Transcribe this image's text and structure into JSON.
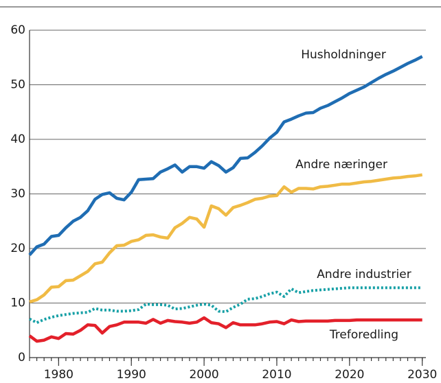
{
  "chart_data": {
    "type": "line",
    "x": [
      1976,
      1977,
      1978,
      1979,
      1980,
      1981,
      1982,
      1983,
      1984,
      1985,
      1986,
      1987,
      1988,
      1989,
      1990,
      1991,
      1992,
      1993,
      1994,
      1995,
      1996,
      1997,
      1998,
      1999,
      2000,
      2001,
      2002,
      2003,
      2004,
      2005,
      2006,
      2007,
      2008,
      2009,
      2010,
      2011,
      2012,
      2013,
      2014,
      2015,
      2016,
      2017,
      2018,
      2019,
      2020,
      2021,
      2022,
      2023,
      2024,
      2025,
      2026,
      2027,
      2028,
      2029,
      2030
    ],
    "series": [
      {
        "name": "Husholdninger",
        "color": "#1f6db3",
        "style": "solid",
        "values": [
          18.8,
          20.3,
          20.8,
          22.2,
          22.4,
          23.8,
          25.0,
          25.7,
          26.9,
          29.0,
          29.9,
          30.2,
          29.2,
          28.9,
          30.3,
          32.6,
          32.7,
          32.8,
          34.0,
          34.6,
          35.3,
          34.0,
          35.0,
          35.0,
          34.7,
          35.9,
          35.2,
          34.0,
          34.8,
          36.5,
          36.6,
          37.6,
          38.8,
          40.2,
          41.3,
          43.2,
          43.7,
          44.3,
          44.8,
          44.9,
          45.7,
          46.2,
          46.9,
          47.6,
          48.4,
          49.0,
          49.6,
          50.4,
          51.2,
          51.9,
          52.5,
          53.2,
          53.9,
          54.5,
          55.2
        ]
      },
      {
        "name": "Andre næringer",
        "color": "#f0bb45",
        "style": "solid",
        "values": [
          10.2,
          10.6,
          11.5,
          12.9,
          13.0,
          14.1,
          14.2,
          15.0,
          15.8,
          17.2,
          17.5,
          19.2,
          20.5,
          20.6,
          21.3,
          21.6,
          22.4,
          22.5,
          22.1,
          21.9,
          23.8,
          24.6,
          25.7,
          25.4,
          23.9,
          27.8,
          27.3,
          26.1,
          27.5,
          27.9,
          28.4,
          29.0,
          29.2,
          29.6,
          29.7,
          31.3,
          30.3,
          31.0,
          31.0,
          30.9,
          31.3,
          31.4,
          31.6,
          31.8,
          31.8,
          32.0,
          32.2,
          32.3,
          32.5,
          32.7,
          32.9,
          33.0,
          33.2,
          33.3,
          33.5
        ]
      },
      {
        "name": "Andre industrier",
        "color": "#17a0a6",
        "style": "dotted",
        "values": [
          7.1,
          6.4,
          7.0,
          7.4,
          7.7,
          7.9,
          8.1,
          8.2,
          8.3,
          9.0,
          8.7,
          8.7,
          8.5,
          8.5,
          8.6,
          8.8,
          9.8,
          9.7,
          9.7,
          9.6,
          8.9,
          9.0,
          9.3,
          9.6,
          9.8,
          9.6,
          8.5,
          8.4,
          9.2,
          9.8,
          10.7,
          10.8,
          11.2,
          11.7,
          12.0,
          11.2,
          12.6,
          11.9,
          12.1,
          12.3,
          12.4,
          12.5,
          12.6,
          12.7,
          12.8,
          12.8,
          12.8,
          12.8,
          12.8,
          12.8,
          12.8,
          12.8,
          12.8,
          12.8,
          12.8
        ]
      },
      {
        "name": "Treforedling",
        "color": "#e3202a",
        "style": "solid",
        "values": [
          4.0,
          3.0,
          3.2,
          3.8,
          3.5,
          4.4,
          4.3,
          5.0,
          6.0,
          5.9,
          4.5,
          5.7,
          6.0,
          6.5,
          6.5,
          6.5,
          6.3,
          7.0,
          6.3,
          6.8,
          6.6,
          6.5,
          6.3,
          6.5,
          7.3,
          6.4,
          6.2,
          5.5,
          6.4,
          6.0,
          6.0,
          6.0,
          6.2,
          6.5,
          6.6,
          6.2,
          6.9,
          6.6,
          6.7,
          6.7,
          6.7,
          6.7,
          6.8,
          6.8,
          6.8,
          6.9,
          6.9,
          6.9,
          6.9,
          6.9,
          6.9,
          6.9,
          6.9,
          6.9,
          6.9
        ]
      }
    ],
    "xlim": [
      1976,
      2030.5
    ],
    "xticks": [
      1980,
      1990,
      2000,
      2010,
      2020,
      2030
    ],
    "ylim": [
      0,
      60
    ],
    "yticks": [
      0,
      10,
      20,
      30,
      40,
      50,
      60
    ],
    "grid": true
  }
}
